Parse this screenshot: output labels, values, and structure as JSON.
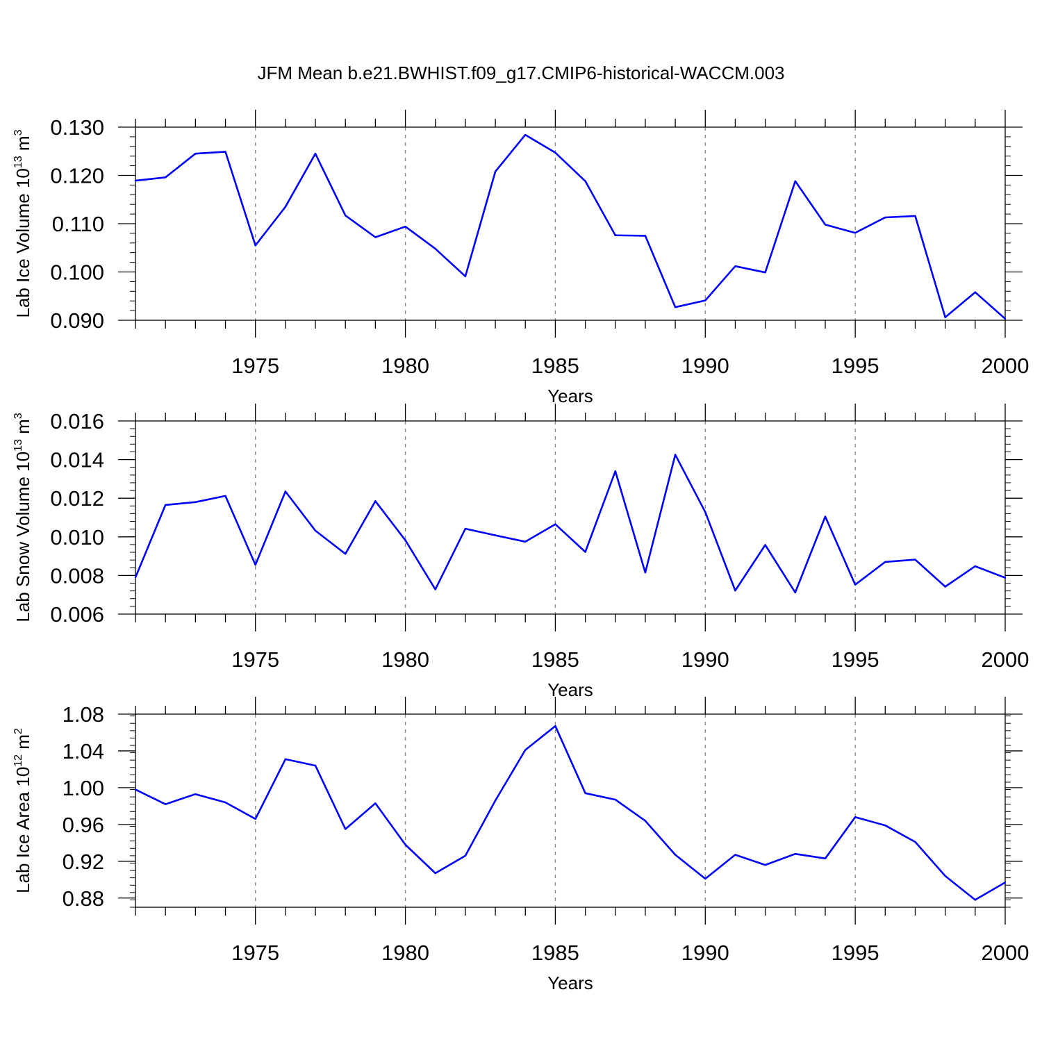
{
  "title": "JFM Mean b.e21.BWHIST.f09_g17.CMIP6-historical-WACCM.003",
  "line_color": "#0000ff",
  "chart_data": [
    {
      "type": "line",
      "title": "JFM Mean b.e21.BWHIST.f09_g17.CMIP6-historical-WACCM.003",
      "xlabel": "Years",
      "ylabel": {
        "text": "Lab Ice Volume 10",
        "exp": "13",
        "unit": " m",
        "unit_exp": "3"
      },
      "xlim": [
        1971,
        2000
      ],
      "ylim": [
        0.09,
        0.13
      ],
      "xticks": [
        1975,
        1980,
        1985,
        1990,
        1995,
        2000
      ],
      "xtick_labels": [
        "1975",
        "1980",
        "1985",
        "1990",
        "1995",
        "2000"
      ],
      "yticks": [
        0.09,
        0.1,
        0.11,
        0.12,
        0.13
      ],
      "ytick_labels": [
        "0.090",
        "0.100",
        "0.110",
        "0.120",
        "0.130"
      ],
      "x": [
        1971,
        1972,
        1973,
        1974,
        1975,
        1976,
        1977,
        1978,
        1979,
        1980,
        1981,
        1982,
        1983,
        1984,
        1985,
        1986,
        1987,
        1988,
        1989,
        1990,
        1991,
        1992,
        1993,
        1994,
        1995,
        1996,
        1997,
        1998,
        1999,
        2000
      ],
      "values": [
        0.1189,
        0.1196,
        0.1245,
        0.1249,
        0.1055,
        0.1135,
        0.1245,
        0.1117,
        0.1072,
        0.1094,
        0.1048,
        0.0991,
        0.1208,
        0.1284,
        0.1247,
        0.1188,
        0.1076,
        0.1075,
        0.0927,
        0.0941,
        0.1012,
        0.0999,
        0.1188,
        0.1098,
        0.1081,
        0.1113,
        0.1116,
        0.0906,
        0.0958,
        0.0903
      ]
    },
    {
      "type": "line",
      "xlabel": "Years",
      "ylabel": {
        "text": "Lab Snow Volume 10",
        "exp": "13",
        "unit": " m",
        "unit_exp": "3"
      },
      "xlim": [
        1971,
        2000
      ],
      "ylim": [
        0.006,
        0.016
      ],
      "xticks": [
        1975,
        1980,
        1985,
        1990,
        1995,
        2000
      ],
      "xtick_labels": [
        "1975",
        "1980",
        "1985",
        "1990",
        "1995",
        "2000"
      ],
      "yticks": [
        0.006,
        0.008,
        0.01,
        0.012,
        0.014,
        0.016
      ],
      "ytick_labels": [
        "0.006",
        "0.008",
        "0.010",
        "0.012",
        "0.014",
        "0.016"
      ],
      "x": [
        1971,
        1972,
        1973,
        1974,
        1975,
        1976,
        1977,
        1978,
        1979,
        1980,
        1981,
        1982,
        1983,
        1984,
        1985,
        1986,
        1987,
        1988,
        1989,
        1990,
        1991,
        1992,
        1993,
        1994,
        1995,
        1996,
        1997,
        1998,
        1999,
        2000
      ],
      "values": [
        0.0079,
        0.01165,
        0.0118,
        0.01212,
        0.00855,
        0.01235,
        0.01032,
        0.00912,
        0.01185,
        0.00982,
        0.00728,
        0.01042,
        0.01008,
        0.00975,
        0.01065,
        0.00922,
        0.0134,
        0.00815,
        0.01425,
        0.01128,
        0.00722,
        0.00958,
        0.00712,
        0.01105,
        0.00752,
        0.0087,
        0.00882,
        0.00742,
        0.00848,
        0.00788
      ]
    },
    {
      "type": "line",
      "xlabel": "Years",
      "ylabel": {
        "text": "Lab Ice Area 10",
        "exp": "12",
        "unit": " m",
        "unit_exp": "2"
      },
      "xlim": [
        1971,
        2000
      ],
      "ylim": [
        0.87,
        1.08
      ],
      "xticks": [
        1975,
        1980,
        1985,
        1990,
        1995,
        2000
      ],
      "xtick_labels": [
        "1975",
        "1980",
        "1985",
        "1990",
        "1995",
        "2000"
      ],
      "yticks": [
        0.88,
        0.92,
        0.96,
        1.0,
        1.04,
        1.08
      ],
      "ytick_labels": [
        "0.88",
        "0.92",
        "0.96",
        "1.00",
        "1.04",
        "1.08"
      ],
      "x": [
        1971,
        1972,
        1973,
        1974,
        1975,
        1976,
        1977,
        1978,
        1979,
        1980,
        1981,
        1982,
        1983,
        1984,
        1985,
        1986,
        1987,
        1988,
        1989,
        1990,
        1991,
        1992,
        1993,
        1994,
        1995,
        1996,
        1997,
        1998,
        1999,
        2000
      ],
      "values": [
        0.998,
        0.982,
        0.993,
        0.984,
        0.966,
        1.031,
        1.024,
        0.955,
        0.983,
        0.938,
        0.907,
        0.926,
        0.986,
        1.041,
        1.067,
        0.994,
        0.987,
        0.964,
        0.927,
        0.901,
        0.927,
        0.916,
        0.928,
        0.923,
        0.968,
        0.959,
        0.941,
        0.904,
        0.878,
        0.897
      ]
    }
  ]
}
